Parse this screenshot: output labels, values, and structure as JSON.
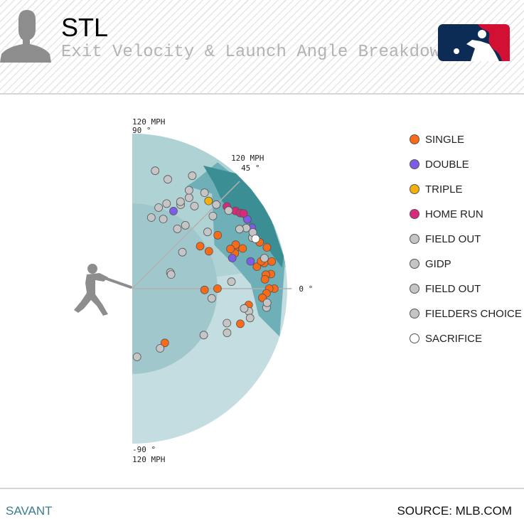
{
  "header": {
    "team": "STL",
    "subtitle": "Exit Velocity & Launch Angle Breakdown",
    "logo_icon": "mlb-logo-icon",
    "avatar_icon": "player-silhouette-icon"
  },
  "footer": {
    "left": "SAVANT",
    "right": "SOURCE: MLB.COM"
  },
  "colors": {
    "single": "#fb6a17",
    "double": "#7c5ce8",
    "triple": "#f5b10a",
    "home_run": "#d8297c",
    "out": "#c5c5c5",
    "sacrifice": "#ffffff",
    "zone_outer": "#c3dde0",
    "zone_mid": "#afd2d5",
    "zone_inner": "#a0c8cc",
    "zone_sweet": "#6fb0b8",
    "zone_barrel": "#3a8e94"
  },
  "legend": [
    {
      "label": "SINGLE",
      "key": "single"
    },
    {
      "label": "DOUBLE",
      "key": "double"
    },
    {
      "label": "TRIPLE",
      "key": "triple"
    },
    {
      "label": "HOME RUN",
      "key": "home_run"
    },
    {
      "label": "FIELD OUT",
      "key": "out"
    },
    {
      "label": "GIDP",
      "key": "out"
    },
    {
      "label": "FIELD OUT",
      "key": "out"
    },
    {
      "label": "FIELDERS CHOICE",
      "key": "out"
    },
    {
      "label": "SACRIFICE",
      "key": "sacrifice"
    }
  ],
  "chart_data": {
    "type": "scatter",
    "coordinate_system": "polar",
    "radius_variable": "exit velocity (mph)",
    "angle_variable": "launch angle (degrees)",
    "r_max": 120,
    "angle_range": [
      -90,
      90
    ],
    "axis_labels": {
      "top": {
        "line1": "120 MPH",
        "line2": "90 °"
      },
      "diag": {
        "line1": "120 MPH",
        "line2": "45 °"
      },
      "zero": "0 °",
      "bottom": {
        "line1": "-90 °",
        "line2": "120 MPH"
      }
    },
    "points": [
      {
        "ev": 105,
        "la": 20,
        "result": "single"
      },
      {
        "ev": 109,
        "la": 17,
        "result": "single"
      },
      {
        "ev": 104,
        "la": 11,
        "result": "single"
      },
      {
        "ev": 110,
        "la": 11,
        "result": "single"
      },
      {
        "ev": 108,
        "la": 6,
        "result": "single"
      },
      {
        "ev": 104,
        "la": 6,
        "result": "single"
      },
      {
        "ev": 103,
        "la": 4,
        "result": "single"
      },
      {
        "ev": 110,
        "la": 0,
        "result": "single"
      },
      {
        "ev": 106,
        "la": 0,
        "result": "single"
      },
      {
        "ev": 104,
        "la": -2,
        "result": "single"
      },
      {
        "ev": 101,
        "la": -4,
        "result": "single"
      },
      {
        "ev": 91,
        "la": -8,
        "result": "single"
      },
      {
        "ev": 98,
        "la": 10,
        "result": "single"
      },
      {
        "ev": 102,
        "la": 12,
        "result": "single"
      },
      {
        "ev": 91,
        "la": 20,
        "result": "single"
      },
      {
        "ev": 85,
        "la": 21,
        "result": "single"
      },
      {
        "ev": 84,
        "la": 19,
        "result": "single"
      },
      {
        "ev": 87,
        "la": 23,
        "result": "single"
      },
      {
        "ev": 82,
        "la": 22,
        "result": "single"
      },
      {
        "ev": 78,
        "la": 32,
        "result": "single"
      },
      {
        "ev": 62,
        "la": 32,
        "result": "single"
      },
      {
        "ev": 66,
        "la": 26,
        "result": "single"
      },
      {
        "ev": 66,
        "la": 0,
        "result": "single"
      },
      {
        "ev": 56,
        "la": -1,
        "result": "single"
      },
      {
        "ev": 88,
        "la": -18,
        "result": "single"
      },
      {
        "ev": 49,
        "la": -59,
        "result": "single"
      },
      {
        "ev": 104,
        "la": 31,
        "result": "double"
      },
      {
        "ev": 104,
        "la": 27,
        "result": "double"
      },
      {
        "ev": 94,
        "la": 13,
        "result": "double"
      },
      {
        "ev": 81,
        "la": 17,
        "result": "double"
      },
      {
        "ev": 68,
        "la": 62,
        "result": "double"
      },
      {
        "ev": 90,
        "la": 49,
        "result": "triple"
      },
      {
        "ev": 97,
        "la": 41,
        "result": "home_run"
      },
      {
        "ev": 100,
        "la": 37,
        "result": "home_run"
      },
      {
        "ev": 102,
        "la": 35,
        "result": "home_run"
      },
      {
        "ev": 104,
        "la": 34,
        "result": "home_run"
      },
      {
        "ev": 100,
        "la": 28,
        "result": "out"
      },
      {
        "ev": 95,
        "la": 29,
        "result": "out"
      },
      {
        "ev": 101,
        "la": 23,
        "result": "out"
      },
      {
        "ev": 96,
        "la": 39,
        "result": "out"
      },
      {
        "ev": 92,
        "la": 45,
        "result": "out"
      },
      {
        "ev": 84,
        "la": 42,
        "result": "out"
      },
      {
        "ev": 93,
        "la": 53,
        "result": "out"
      },
      {
        "ev": 80,
        "la": 53,
        "result": "out"
      },
      {
        "ev": 83,
        "la": 58,
        "result": "out"
      },
      {
        "ev": 75,
        "la": 60,
        "result": "out"
      },
      {
        "ev": 77,
        "la": 61,
        "result": "out"
      },
      {
        "ev": 71,
        "la": 68,
        "result": "out"
      },
      {
        "ev": 66,
        "la": 72,
        "result": "out"
      },
      {
        "ev": 57,
        "la": 75,
        "result": "out"
      },
      {
        "ev": 64,
        "la": 50,
        "result": "out"
      },
      {
        "ev": 58,
        "la": 53,
        "result": "out"
      },
      {
        "ev": 59,
        "la": 66,
        "result": "out"
      },
      {
        "ev": 93,
        "la": 79,
        "result": "out"
      },
      {
        "ev": 89,
        "la": 72,
        "result": "out"
      },
      {
        "ev": 99,
        "la": 62,
        "result": "out"
      },
      {
        "ev": 88,
        "la": 60,
        "result": "out"
      },
      {
        "ev": 73,
        "la": 37,
        "result": "out"
      },
      {
        "ev": 32,
        "la": 23,
        "result": "out"
      },
      {
        "ev": 32,
        "la": 20,
        "result": "out"
      },
      {
        "ev": 48,
        "la": 36,
        "result": "out"
      },
      {
        "ev": 103,
        "la": 25,
        "result": "out"
      },
      {
        "ev": 105,
        "la": 13,
        "result": "out"
      },
      {
        "ev": 105,
        "la": -8,
        "result": "out"
      },
      {
        "ev": 105,
        "la": -6,
        "result": "out"
      },
      {
        "ev": 92,
        "la": -11,
        "result": "out"
      },
      {
        "ev": 94,
        "la": -14,
        "result": "out"
      },
      {
        "ev": 88,
        "la": -10,
        "result": "out"
      },
      {
        "ev": 78,
        "la": -20,
        "result": "out"
      },
      {
        "ev": 81,
        "la": -25,
        "result": "out"
      },
      {
        "ev": 62,
        "la": -7,
        "result": "out"
      },
      {
        "ev": 77,
        "la": 4,
        "result": "out"
      },
      {
        "ev": 66,
        "la": -33,
        "result": "out"
      },
      {
        "ev": 51,
        "la": -65,
        "result": "out"
      },
      {
        "ev": 53,
        "la": -86,
        "result": "out"
      },
      {
        "ev": 103,
        "la": 22,
        "result": "sacrifice"
      }
    ]
  }
}
